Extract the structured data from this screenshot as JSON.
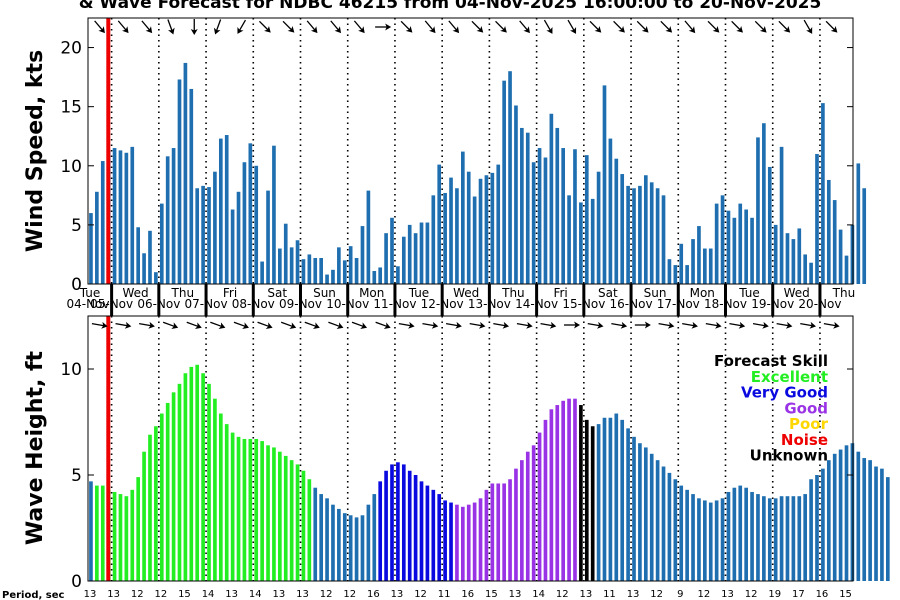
{
  "title": "& Wave Forecast for NDBC 46215 from 04-Nov-2025 16:00:00 to 20-Nov-2025",
  "colors": {
    "wind_bar": "#1f6fb0",
    "now_line": "#ee0000",
    "Excellent": "#22ee22",
    "Very Good": "#0a0ae0",
    "Good": "#9a33e6",
    "Poor": "#ffd700",
    "Noise": "#ee0000",
    "Unknown": "#000000",
    "No skill": "#1f6fb0"
  },
  "legend": {
    "title": "Forecast Skill",
    "items": [
      {
        "label": "Excellent",
        "color": "#22ee22"
      },
      {
        "label": "Very Good",
        "color": "#0a0ae0"
      },
      {
        "label": "Good",
        "color": "#9a33e6"
      },
      {
        "label": "Poor",
        "color": "#ffd700"
      },
      {
        "label": "Noise",
        "color": "#ee0000"
      },
      {
        "label": "Unknown",
        "color": "#000000"
      }
    ]
  },
  "chart_data": [
    {
      "type": "bar",
      "ylabel": "Wind Speed, kts",
      "ylim": [
        0,
        22.5
      ],
      "yticks": [
        0,
        5,
        10,
        15,
        20
      ],
      "xlim": [
        4.5,
        20.7
      ],
      "now_x": 4.93,
      "day_lines": [
        5,
        6,
        7,
        8,
        9,
        10,
        11,
        12,
        13,
        14,
        15,
        16,
        17,
        18,
        19,
        20
      ],
      "day_labels": [
        {
          "x": 4.5,
          "dow": "Tue",
          "date": "04-Nov"
        },
        {
          "x": 5.0,
          "dow": "Wed",
          "date": "05-Nov"
        },
        {
          "x": 6.0,
          "dow": "Thu",
          "date": "06-Nov"
        },
        {
          "x": 7.0,
          "dow": "Fri",
          "date": "07-Nov"
        },
        {
          "x": 8.0,
          "dow": "Sat",
          "date": "08-Nov"
        },
        {
          "x": 9.0,
          "dow": "Sun",
          "date": "09-Nov"
        },
        {
          "x": 10.0,
          "dow": "Mon",
          "date": "10-Nov"
        },
        {
          "x": 11.0,
          "dow": "Tue",
          "date": "11-Nov"
        },
        {
          "x": 12.0,
          "dow": "Wed",
          "date": "12-Nov"
        },
        {
          "x": 13.0,
          "dow": "Thu",
          "date": "13-Nov"
        },
        {
          "x": 14.0,
          "dow": "Fri",
          "date": "14-Nov"
        },
        {
          "x": 15.0,
          "dow": "Sat",
          "date": "15-Nov"
        },
        {
          "x": 16.0,
          "dow": "Sun",
          "date": "16-Nov"
        },
        {
          "x": 17.0,
          "dow": "Mon",
          "date": "17-Nov"
        },
        {
          "x": 18.0,
          "dow": "Tue",
          "date": "18-Nov"
        },
        {
          "x": 19.0,
          "dow": "Wed",
          "date": "19-Nov"
        },
        {
          "x": 20.0,
          "dow": "Thu",
          "date": "20-Nov"
        }
      ],
      "bar_step_days": 0.125,
      "wind_dirs_deg": [
        140,
        140,
        140,
        160,
        180,
        200,
        210,
        135,
        135,
        140,
        140,
        140,
        90,
        135,
        140,
        140,
        135,
        135,
        140,
        150,
        150,
        135,
        135,
        135,
        135,
        140,
        135,
        135,
        135,
        135,
        150,
        135
      ],
      "values": [
        6.0,
        7.8,
        10.4,
        11.3,
        11.5,
        11.3,
        11.1,
        11.6,
        4.8,
        2.6,
        4.5,
        1.0,
        6.8,
        10.8,
        11.5,
        17.3,
        18.7,
        16.5,
        8.1,
        8.3,
        8.2,
        9.5,
        12.3,
        12.6,
        6.3,
        7.8,
        10.3,
        11.9,
        10.0,
        1.9,
        7.9,
        11.7,
        3.0,
        5.1,
        3.1,
        3.7,
        2.1,
        2.5,
        2.2,
        2.2,
        0.8,
        1.2,
        3.1,
        2.0,
        3.2,
        2.2,
        4.9,
        7.9,
        1.1,
        1.4,
        4.3,
        5.6,
        1.5,
        4.0,
        5.0,
        4.3,
        5.2,
        5.2,
        7.5,
        10.1,
        7.7,
        9.0,
        8.1,
        11.2,
        9.5,
        7.4,
        8.9,
        9.2,
        9.4,
        10.1,
        17.2,
        18.0,
        15.1,
        13.2,
        12.8,
        10.3,
        11.5,
        10.7,
        14.4,
        13.2,
        11.5,
        7.5,
        11.4,
        6.9,
        10.9,
        7.2,
        9.5,
        16.8,
        12.3,
        10.6,
        9.3,
        8.3,
        8.1,
        8.3,
        9.2,
        8.6,
        8.1,
        7.5,
        2.1,
        1.6,
        3.4,
        1.6,
        3.8,
        4.9,
        3.0,
        3.0,
        6.8,
        7.5,
        6.2,
        5.6,
        6.8,
        6.3,
        5.6,
        12.4,
        13.6,
        9.9,
        5.0,
        11.6,
        4.3,
        3.8,
        4.7,
        2.5,
        1.8,
        11.0,
        15.3,
        8.8,
        7.1,
        4.6,
        2.4,
        5.0,
        10.2,
        8.1
      ]
    },
    {
      "type": "bar",
      "ylabel": "Wave Height, ft",
      "ylim": [
        0,
        12.5
      ],
      "yticks": [
        0,
        5,
        10
      ],
      "xlim": [
        4.5,
        20.7
      ],
      "now_x": 4.93,
      "day_lines": [
        5,
        6,
        7,
        8,
        9,
        10,
        11,
        12,
        13,
        14,
        15,
        16,
        17,
        18,
        19,
        20
      ],
      "bar_step_days": 0.125,
      "period_label": "Period, sec",
      "period_ticks": [
        {
          "x": 4.5,
          "v": "13"
        },
        {
          "x": 5.0,
          "v": "13"
        },
        {
          "x": 5.5,
          "v": "12"
        },
        {
          "x": 6.0,
          "v": "12"
        },
        {
          "x": 6.5,
          "v": "15"
        },
        {
          "x": 7.0,
          "v": "14"
        },
        {
          "x": 7.5,
          "v": "13"
        },
        {
          "x": 8.0,
          "v": "14"
        },
        {
          "x": 8.5,
          "v": "13"
        },
        {
          "x": 9.0,
          "v": "13"
        },
        {
          "x": 9.5,
          "v": "12"
        },
        {
          "x": 10.0,
          "v": "12"
        },
        {
          "x": 10.5,
          "v": "16"
        },
        {
          "x": 11.0,
          "v": "13"
        },
        {
          "x": 11.5,
          "v": "12"
        },
        {
          "x": 12.0,
          "v": "11"
        },
        {
          "x": 12.5,
          "v": "16"
        },
        {
          "x": 13.0,
          "v": "15"
        },
        {
          "x": 13.5,
          "v": "13"
        },
        {
          "x": 14.0,
          "v": "14"
        },
        {
          "x": 14.5,
          "v": "12"
        },
        {
          "x": 15.0,
          "v": "13"
        },
        {
          "x": 15.5,
          "v": "11"
        },
        {
          "x": 16.0,
          "v": "13"
        },
        {
          "x": 16.5,
          "v": "12"
        },
        {
          "x": 17.0,
          "v": "9"
        },
        {
          "x": 17.5,
          "v": "12"
        },
        {
          "x": 18.0,
          "v": "13"
        },
        {
          "x": 18.5,
          "v": "12"
        },
        {
          "x": 19.0,
          "v": "19"
        },
        {
          "x": 19.5,
          "v": "17"
        },
        {
          "x": 20.0,
          "v": "16"
        },
        {
          "x": 20.5,
          "v": "15"
        }
      ],
      "wave_dirs_deg": [
        100,
        100,
        100,
        110,
        110,
        110,
        110,
        110,
        110,
        110,
        110,
        110,
        110,
        100,
        100,
        100,
        100,
        100,
        100,
        100,
        90,
        100,
        100,
        90,
        100,
        100,
        100,
        100,
        100,
        100,
        100,
        100
      ],
      "values": [
        4.7,
        4.5,
        4.5,
        4.3,
        4.2,
        4.1,
        4.0,
        4.3,
        4.9,
        6.1,
        6.9,
        7.3,
        7.9,
        8.4,
        8.9,
        9.3,
        9.8,
        10.1,
        10.2,
        9.8,
        9.3,
        8.6,
        7.9,
        7.4,
        7.0,
        6.8,
        6.7,
        6.7,
        6.7,
        6.6,
        6.4,
        6.3,
        6.1,
        5.9,
        5.7,
        5.5,
        5.2,
        4.8,
        4.4,
        4.1,
        3.9,
        3.6,
        3.4,
        3.2,
        3.1,
        3.0,
        3.1,
        3.6,
        4.1,
        4.7,
        5.2,
        5.5,
        5.6,
        5.5,
        5.2,
        5.0,
        4.7,
        4.5,
        4.3,
        4.1,
        3.8,
        3.7,
        3.6,
        3.5,
        3.6,
        3.7,
        3.9,
        4.3,
        4.6,
        4.6,
        4.6,
        4.8,
        5.3,
        5.7,
        6.1,
        6.4,
        7.0,
        7.6,
        8.1,
        8.3,
        8.5,
        8.6,
        8.6,
        8.3,
        7.6,
        7.3,
        7.4,
        7.7,
        7.7,
        7.9,
        7.6,
        7.2,
        6.8,
        6.5,
        6.3,
        6.0,
        5.7,
        5.4,
        5.1,
        4.8,
        4.5,
        4.3,
        4.1,
        3.9,
        3.8,
        3.7,
        3.8,
        3.9,
        4.2,
        4.4,
        4.5,
        4.4,
        4.2,
        4.1,
        4.0,
        3.9,
        3.9,
        4.0,
        4.0,
        4.0,
        4.0,
        4.1,
        4.8,
        5.0,
        5.3,
        5.7,
        6.0,
        6.2,
        6.4,
        6.5,
        6.1,
        5.8,
        5.7,
        5.4,
        5.3,
        4.9
      ],
      "skill": [
        "No skill",
        "Excellent",
        "Excellent",
        "Excellent",
        "Excellent",
        "Excellent",
        "Excellent",
        "Excellent",
        "Excellent",
        "Excellent",
        "Excellent",
        "Excellent",
        "Excellent",
        "Excellent",
        "Excellent",
        "Excellent",
        "Excellent",
        "Excellent",
        "Excellent",
        "Excellent",
        "Excellent",
        "Excellent",
        "Excellent",
        "Excellent",
        "Excellent",
        "Excellent",
        "Excellent",
        "Excellent",
        "Excellent",
        "Excellent",
        "Excellent",
        "Excellent",
        "Excellent",
        "Excellent",
        "Excellent",
        "Excellent",
        "Excellent",
        "Excellent",
        "No skill",
        "No skill",
        "No skill",
        "No skill",
        "No skill",
        "No skill",
        "No skill",
        "No skill",
        "No skill",
        "No skill",
        "No skill",
        "Very Good",
        "Very Good",
        "Very Good",
        "Very Good",
        "Very Good",
        "Very Good",
        "Very Good",
        "Very Good",
        "Very Good",
        "Very Good",
        "Very Good",
        "Very Good",
        "Very Good",
        "Good",
        "Good",
        "Good",
        "Good",
        "Good",
        "Good",
        "Good",
        "Good",
        "Good",
        "Good",
        "Good",
        "Good",
        "Good",
        "Good",
        "Good",
        "Good",
        "Good",
        "Good",
        "Good",
        "Good",
        "Good",
        "Unknown",
        "Unknown",
        "Unknown",
        "No skill",
        "No skill",
        "No skill",
        "No skill",
        "No skill",
        "No skill",
        "No skill",
        "No skill",
        "No skill",
        "No skill",
        "No skill",
        "No skill",
        "No skill",
        "No skill",
        "No skill",
        "No skill",
        "No skill",
        "No skill",
        "No skill",
        "No skill",
        "No skill",
        "No skill",
        "No skill",
        "No skill",
        "No skill",
        "No skill",
        "No skill",
        "No skill",
        "No skill",
        "No skill",
        "No skill",
        "No skill",
        "No skill",
        "No skill",
        "No skill",
        "No skill",
        "No skill",
        "No skill",
        "No skill",
        "No skill",
        "No skill",
        "No skill",
        "No skill",
        "No skill",
        "No skill",
        "No skill",
        "No skill",
        "No skill",
        "No skill"
      ]
    }
  ]
}
